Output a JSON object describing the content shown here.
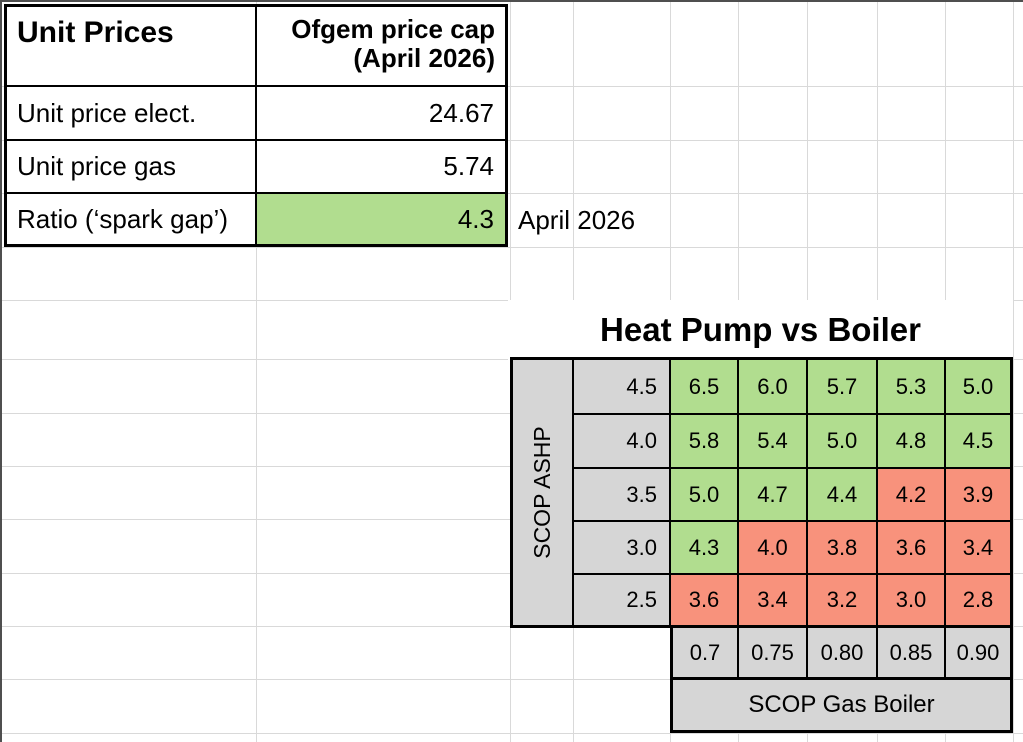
{
  "unit_prices": {
    "title": "Unit Prices",
    "column_header_line1": "Ofgem price cap",
    "column_header_line2": "(April 2026)",
    "rows": [
      {
        "label": "Unit price elect.",
        "value": "24.67",
        "highlight": false
      },
      {
        "label": "Unit price gas",
        "value": "5.74",
        "highlight": false
      },
      {
        "label": "Ratio (‘spark gap’)",
        "value": "4.3",
        "highlight": true
      }
    ],
    "annotation": "April 2026"
  },
  "heatmap": {
    "title": "Heat Pump vs Boiler",
    "y_axis_label": "SCOP ASHP",
    "x_axis_label": "SCOP Gas Boiler",
    "col_labels": [
      "0.7",
      "0.75",
      "0.80",
      "0.85",
      "0.90"
    ],
    "rows": [
      {
        "scop_ashp": "4.5",
        "values": [
          "6.5",
          "6.0",
          "5.7",
          "5.3",
          "5.0"
        ],
        "tones": [
          "green",
          "green",
          "green",
          "green",
          "green"
        ]
      },
      {
        "scop_ashp": "4.0",
        "values": [
          "5.8",
          "5.4",
          "5.0",
          "4.8",
          "4.5"
        ],
        "tones": [
          "green",
          "green",
          "green",
          "green",
          "green"
        ]
      },
      {
        "scop_ashp": "3.5",
        "values": [
          "5.0",
          "4.7",
          "4.4",
          "4.2",
          "3.9"
        ],
        "tones": [
          "green",
          "green",
          "green",
          "red",
          "red"
        ]
      },
      {
        "scop_ashp": "3.0",
        "values": [
          "4.3",
          "4.0",
          "3.8",
          "3.6",
          "3.4"
        ],
        "tones": [
          "green",
          "red",
          "red",
          "red",
          "red"
        ]
      },
      {
        "scop_ashp": "2.5",
        "values": [
          "3.6",
          "3.4",
          "3.2",
          "3.0",
          "2.8"
        ],
        "tones": [
          "red",
          "red",
          "red",
          "red",
          "red"
        ]
      }
    ]
  },
  "colors": {
    "favourable_green": "#b1dd8f",
    "unfavourable_red": "#f8927c",
    "axis_gray": "#d6d6d6",
    "gridline": "#d9d9d9",
    "window_edge": "#4f4f4f"
  }
}
